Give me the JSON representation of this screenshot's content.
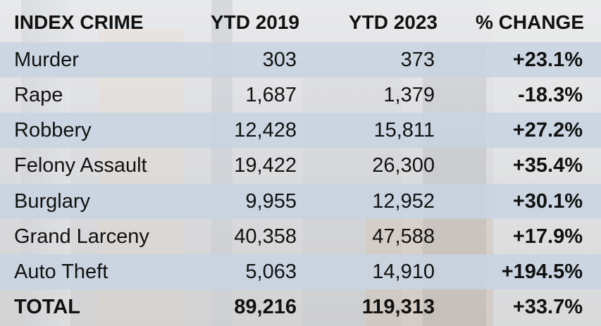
{
  "chart_data": {
    "type": "table",
    "columns": [
      "INDEX CRIME",
      "YTD 2019",
      "YTD 2023",
      "% CHANGE"
    ],
    "rows": [
      [
        "Murder",
        "303",
        "373",
        "+23.1%"
      ],
      [
        "Rape",
        "1,687",
        "1,379",
        "-18.3%"
      ],
      [
        "Robbery",
        "12,428",
        "15,811",
        "+27.2%"
      ],
      [
        "Felony Assault",
        "19,422",
        "26,300",
        "+35.4%"
      ],
      [
        "Burglary",
        "9,955",
        "12,952",
        "+30.1%"
      ],
      [
        "Grand Larceny",
        "40,358",
        "47,588",
        "+17.9%"
      ],
      [
        "Auto Theft",
        "5,063",
        "14,910",
        "+194.5%"
      ]
    ],
    "total": [
      "TOTAL",
      "89,216",
      "119,313",
      "+33.7%"
    ],
    "row_shading_color": "#c8d4e2"
  }
}
